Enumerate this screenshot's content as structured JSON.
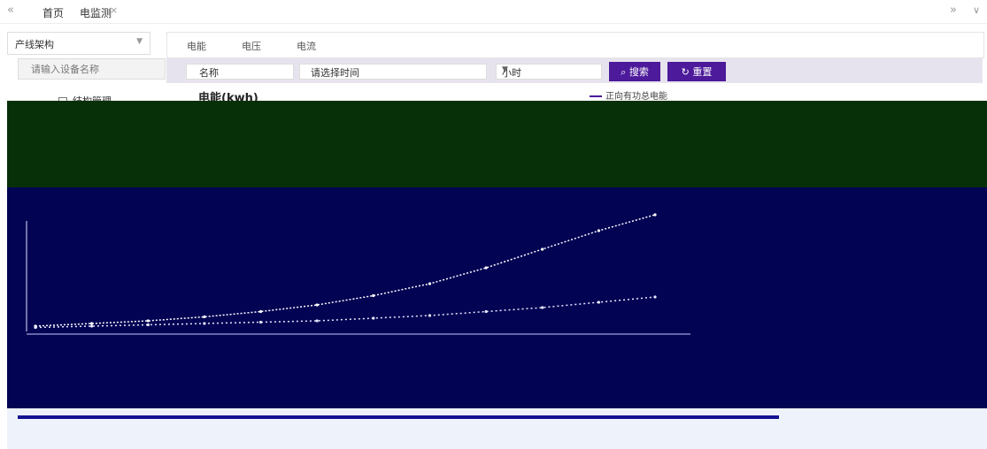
{
  "topbar": {
    "home_tab": "首页",
    "power_tab": "电监测",
    "close": "×",
    "nav_left": "«",
    "nav_right": "»",
    "nav_down": "∨"
  },
  "sidebar": {
    "dropdown": "产线架构",
    "filter_placeholder": "请输入设备名称",
    "tree_node": "结构管理"
  },
  "subtabs": [
    "电能",
    "电压",
    "电流"
  ],
  "filters": {
    "name_label": "名称",
    "time_placeholder": "请选择时间",
    "unit": "小时",
    "search_btn": "搜索",
    "reset_btn": "重置"
  },
  "chart": {
    "title": "电能(kwh)",
    "legend": "正向有功总电能",
    "colors": {
      "series": "#ffffff",
      "dark": "#083008",
      "navy": "#030354",
      "accent": "#4c1a9a"
    }
  },
  "chart_data": {
    "type": "line",
    "title": "电能(kwh)",
    "series": [
      {
        "name": "正向有功总电能",
        "values": [
          2,
          4,
          6,
          9,
          13,
          18,
          25,
          34,
          46,
          60,
          74,
          86
        ]
      },
      {
        "values": [
          1,
          2,
          3,
          4,
          5,
          6,
          8,
          10,
          13,
          16,
          20,
          24
        ]
      }
    ],
    "x": [
      1,
      2,
      3,
      4,
      5,
      6,
      7,
      8,
      9,
      10,
      11,
      12
    ],
    "ylim": [
      0,
      100
    ]
  }
}
